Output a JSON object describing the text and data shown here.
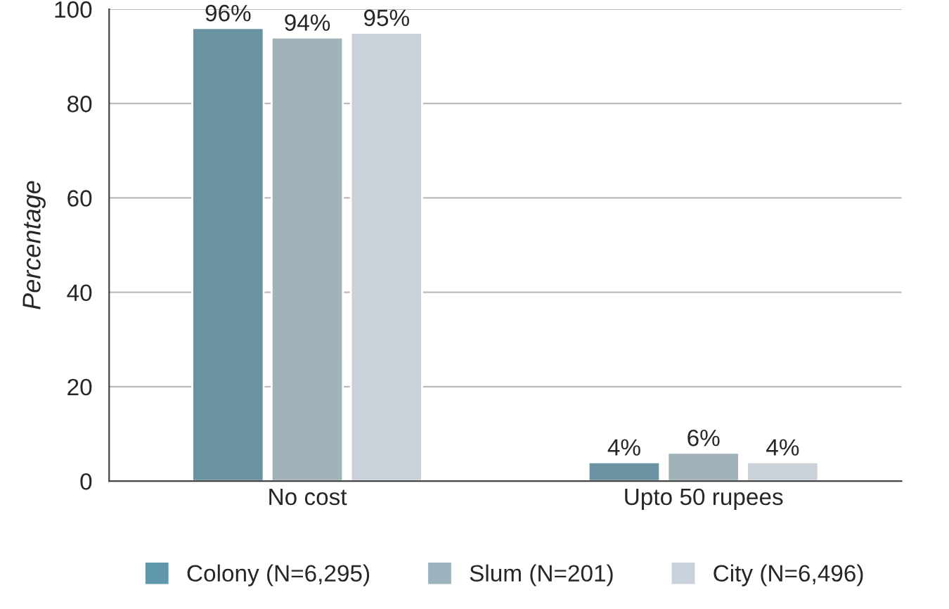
{
  "chart_data": {
    "type": "bar",
    "ylabel": "Percentage",
    "categories": [
      "No cost",
      "Upto 50 rupees"
    ],
    "series": [
      {
        "name": "Colony (N=6,295)",
        "color": "#5f97ad",
        "values": [
          96,
          4
        ],
        "value_labels": [
          "96%",
          "4%"
        ]
      },
      {
        "name": "Slum (N=201)",
        "color": "#9db3bd",
        "values": [
          94,
          6
        ],
        "value_labels": [
          "94%",
          "6%"
        ]
      },
      {
        "name": "City (N=6,496)",
        "color": "#c9d1da",
        "values": [
          95,
          4
        ],
        "value_labels": [
          "95%",
          "4%"
        ]
      }
    ],
    "ylim": [
      0,
      100
    ],
    "yticks": [
      0,
      20,
      40,
      60,
      80,
      100
    ],
    "grid": "y",
    "legend": "bottom"
  }
}
